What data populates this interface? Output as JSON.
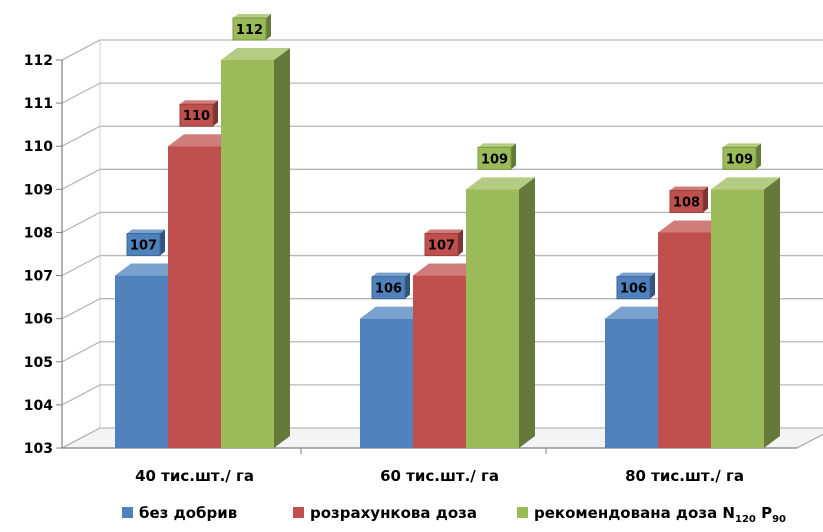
{
  "chart_data": {
    "type": "bar",
    "title": "",
    "xlabel": "",
    "ylabel": "",
    "ylim": [
      103,
      112
    ],
    "yticks": [
      103,
      104,
      105,
      106,
      107,
      108,
      109,
      110,
      111,
      112
    ],
    "categories": [
      "40 тис.шт./ га",
      "60 тис.шт./ га",
      "80 тис.шт./ га"
    ],
    "series": [
      {
        "name": "без добрив",
        "values": [
          107,
          106,
          106
        ],
        "color": "#4f81bd"
      },
      {
        "name": "розрахункова доза",
        "values": [
          110,
          107,
          108
        ],
        "color": "#c0504d"
      },
      {
        "name": "рекомендована доза N120 P90",
        "values": [
          112,
          109,
          109
        ],
        "color": "#9bbb59"
      }
    ],
    "legend": "bottom",
    "grid": true,
    "style": "3d-columns"
  }
}
